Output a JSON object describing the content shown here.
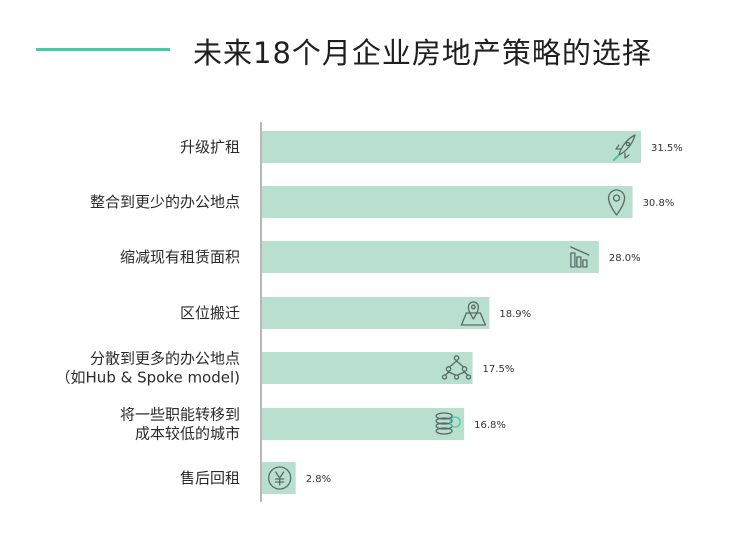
{
  "chart_data": {
    "type": "bar",
    "orientation": "horizontal",
    "title": "未来18个月企业房地产策略的选择",
    "categories": [
      [
        "升级扩租"
      ],
      [
        "整合到更少的办公地点"
      ],
      [
        "缩减现有租赁面积"
      ],
      [
        "区位搬迁"
      ],
      [
        "分散到更多的办公地点",
        "（如Hub & Spoke model)"
      ],
      [
        "将一些职能转移到",
        "成本较低的城市"
      ],
      [
        "售后回租"
      ]
    ],
    "values": [
      31.5,
      30.8,
      28.0,
      18.9,
      17.5,
      16.8,
      2.8
    ],
    "value_labels": [
      "31.5%",
      "30.8%",
      "28.0%",
      "18.9%",
      "17.5%",
      "16.8%",
      "2.8%"
    ],
    "icons": [
      "rocket-icon",
      "location-pin-icon",
      "bar-chart-icon",
      "map-pin-icon",
      "people-network-icon",
      "coin-stack-icon",
      "yen-icon"
    ],
    "xlim": [
      0,
      32
    ],
    "grid": false,
    "legend": "none",
    "bar_color": "#b9dfd1",
    "accent_color": "#45c9a6",
    "axis_color": "#888888"
  }
}
